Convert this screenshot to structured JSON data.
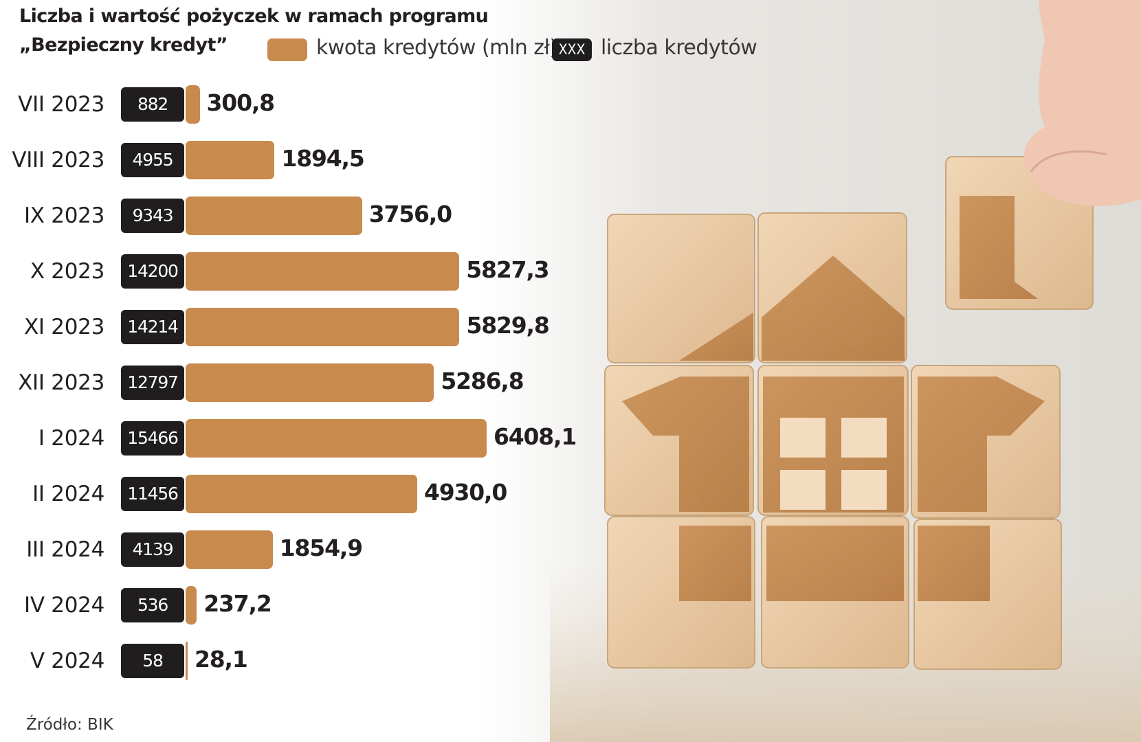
{
  "title_line1": "Liczba i wartość pożyczek w ramach programu",
  "title_line2": "„Bezpieczny kredyt”",
  "legend": {
    "amount_label": "kwota kredytów (mln zł)",
    "count_swatch_text": "XXX",
    "count_label": "liczba kredytów"
  },
  "source": "Źródło: BIK",
  "colors": {
    "amount_bar": "#c98a4d",
    "count_box": "#1f1d1e"
  },
  "chart_data": {
    "type": "bar",
    "orientation": "horizontal",
    "categories": [
      "VII 2023",
      "VIII 2023",
      "IX 2023",
      "X 2023",
      "XI 2023",
      "XII 2023",
      "I 2024",
      "II 2024",
      "III 2024",
      "IV 2024",
      "V 2024"
    ],
    "series": [
      {
        "name": "kwota kredytów (mln zł)",
        "values": [
          300.8,
          1894.5,
          3756.0,
          5827.3,
          5829.8,
          5286.8,
          6408.1,
          4930.0,
          1854.9,
          237.2,
          28.1
        ],
        "labels": [
          "300,8",
          "1894,5",
          "3756,0",
          "5827,3",
          "5829,8",
          "5286,8",
          "6408,1",
          "4930,0",
          "1854,9",
          "237,2",
          "28,1"
        ]
      },
      {
        "name": "liczba kredytów",
        "values": [
          882,
          4955,
          9343,
          14200,
          14214,
          12797,
          15466,
          11456,
          4139,
          536,
          58
        ],
        "labels": [
          "882",
          "4955",
          "9343",
          "14200",
          "14214",
          "12797",
          "15466",
          "11456",
          "4139",
          "536",
          "58"
        ]
      }
    ],
    "grid": false,
    "legend_position": "top"
  }
}
